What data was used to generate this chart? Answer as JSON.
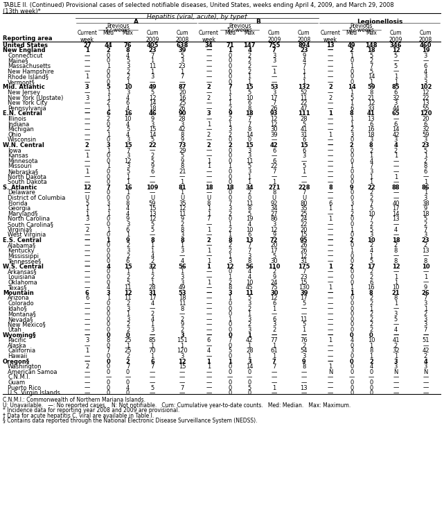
{
  "title": "TABLE II. (Continued) Provisional cases of selected notifiable diseases, United States, weeks ending April 4, 2009, and March 29, 2008",
  "subtitle": "(13th week)*",
  "rows": [
    [
      "United States",
      "27",
      "44",
      "76",
      "405",
      "638",
      "34",
      "71",
      "147",
      "755",
      "894",
      "13",
      "49",
      "148",
      "346",
      "460"
    ],
    [
      "New England",
      "1",
      "2",
      "8",
      "23",
      "39",
      "—",
      "1",
      "4",
      "7",
      "23",
      "—",
      "2",
      "18",
      "12",
      "19"
    ],
    [
      "Connecticut",
      "—",
      "0",
      "4",
      "7",
      "5",
      "—",
      "0",
      "2",
      "3",
      "9",
      "—",
      "1",
      "5",
      "5",
      "3"
    ],
    [
      "Maine§",
      "—",
      "0",
      "5",
      "1",
      "3",
      "—",
      "0",
      "2",
      "3",
      "4",
      "—",
      "0",
      "2",
      "—",
      "—"
    ],
    [
      "Massachusetts",
      "—",
      "1",
      "3",
      "11",
      "23",
      "—",
      "0",
      "2",
      "—",
      "7",
      "—",
      "1",
      "7",
      "5",
      "6"
    ],
    [
      "New Hampshire",
      "—",
      "0",
      "2",
      "1",
      "1",
      "—",
      "0",
      "2",
      "1",
      "1",
      "—",
      "0",
      "5",
      "—",
      "4"
    ],
    [
      "Rhode Island§",
      "1",
      "0",
      "2",
      "3",
      "7",
      "—",
      "0",
      "1",
      "—",
      "1",
      "—",
      "0",
      "14",
      "1",
      "3"
    ],
    [
      "Vermont§",
      "—",
      "0",
      "1",
      "—",
      "—",
      "—",
      "0",
      "1",
      "—",
      "1",
      "—",
      "0",
      "1",
      "1",
      "3"
    ],
    [
      "Mid. Atlantic",
      "3",
      "5",
      "10",
      "49",
      "87",
      "2",
      "7",
      "15",
      "53",
      "132",
      "2",
      "14",
      "59",
      "85",
      "102"
    ],
    [
      "New Jersey",
      "—",
      "1",
      "3",
      "5",
      "20",
      "—",
      "1",
      "5",
      "3",
      "52",
      "—",
      "1",
      "8",
      "6",
      "12"
    ],
    [
      "New York (Upstate)",
      "3",
      "1",
      "4",
      "12",
      "16",
      "2",
      "1",
      "10",
      "17",
      "11",
      "2",
      "5",
      "21",
      "32",
      "22"
    ],
    [
      "New York City",
      "—",
      "2",
      "6",
      "14",
      "25",
      "—",
      "1",
      "6",
      "7",
      "22",
      "—",
      "1",
      "12",
      "3",
      "13"
    ],
    [
      "Pennsylvania",
      "—",
      "1",
      "4",
      "18",
      "26",
      "—",
      "2",
      "8",
      "26",
      "47",
      "—",
      "6",
      "33",
      "44",
      "55"
    ],
    [
      "E.N. Central",
      "—",
      "6",
      "16",
      "46",
      "90",
      "3",
      "9",
      "18",
      "93",
      "111",
      "1",
      "8",
      "41",
      "65",
      "120"
    ],
    [
      "Illinois",
      "—",
      "2",
      "10",
      "9",
      "28",
      "—",
      "2",
      "7",
      "12",
      "28",
      "—",
      "1",
      "13",
      "—",
      "20"
    ],
    [
      "Indiana",
      "—",
      "0",
      "4",
      "3",
      "3",
      "1",
      "1",
      "7",
      "12",
      "5",
      "—",
      "1",
      "6",
      "6",
      "6"
    ],
    [
      "Michigan",
      "—",
      "2",
      "5",
      "15",
      "42",
      "—",
      "3",
      "8",
      "30",
      "41",
      "—",
      "2",
      "16",
      "14",
      "32"
    ],
    [
      "Ohio",
      "—",
      "1",
      "4",
      "14",
      "8",
      "2",
      "2",
      "14",
      "39",
      "31",
      "1",
      "3",
      "18",
      "42",
      "59"
    ],
    [
      "Wisconsin",
      "—",
      "0",
      "3",
      "5",
      "9",
      "—",
      "0",
      "0",
      "—",
      "6",
      "—",
      "0",
      "3",
      "3",
      "3"
    ],
    [
      "W.N. Central",
      "2",
      "3",
      "15",
      "22",
      "73",
      "2",
      "2",
      "15",
      "42",
      "15",
      "—",
      "2",
      "8",
      "4",
      "23"
    ],
    [
      "Iowa",
      "—",
      "1",
      "7",
      "—",
      "29",
      "—",
      "0",
      "3",
      "6",
      "6",
      "—",
      "0",
      "2",
      "2",
      "5"
    ],
    [
      "Kansas",
      "1",
      "0",
      "3",
      "2",
      "5",
      "—",
      "0",
      "3",
      "—",
      "3",
      "—",
      "0",
      "1",
      "1",
      "1"
    ],
    [
      "Minnesota",
      "—",
      "0",
      "12",
      "5",
      "9",
      "1",
      "0",
      "11",
      "6",
      "—",
      "—",
      "0",
      "4",
      "—",
      "2"
    ],
    [
      "Missouri",
      "—",
      "1",
      "3",
      "9",
      "8",
      "1",
      "1",
      "5",
      "22",
      "5",
      "—",
      "1",
      "7",
      "—",
      "8"
    ],
    [
      "Nebraska§",
      "1",
      "0",
      "5",
      "6",
      "21",
      "—",
      "0",
      "3",
      "7",
      "1",
      "—",
      "0",
      "3",
      "—",
      "6"
    ],
    [
      "North Dakota",
      "—",
      "0",
      "1",
      "—",
      "—",
      "—",
      "0",
      "1",
      "—",
      "—",
      "—",
      "0",
      "1",
      "1",
      "—"
    ],
    [
      "South Dakota",
      "—",
      "0",
      "1",
      "—",
      "1",
      "—",
      "0",
      "1",
      "1",
      "—",
      "—",
      "0",
      "1",
      "—",
      "1"
    ],
    [
      "S. Atlantic",
      "12",
      "7",
      "16",
      "109",
      "81",
      "18",
      "18",
      "34",
      "271",
      "228",
      "8",
      "9",
      "22",
      "88",
      "86"
    ],
    [
      "Delaware",
      "—",
      "0",
      "1",
      "—",
      "1",
      "—",
      "0",
      "2",
      "8",
      "7",
      "—",
      "0",
      "2",
      "—",
      "1"
    ],
    [
      "District of Columbia",
      "U",
      "0",
      "0",
      "U",
      "U",
      "U",
      "0",
      "0",
      "U",
      "U",
      "—",
      "0",
      "2",
      "—",
      "3"
    ],
    [
      "Florida",
      "5",
      "3",
      "8",
      "59",
      "35",
      "8",
      "7",
      "11",
      "92",
      "80",
      "6",
      "3",
      "7",
      "40",
      "38"
    ],
    [
      "Georgia",
      "1",
      "1",
      "4",
      "15",
      "12",
      "1",
      "3",
      "8",
      "34",
      "35",
      "1",
      "1",
      "5",
      "17",
      "9"
    ],
    [
      "Maryland§",
      "1",
      "1",
      "4",
      "13",
      "11",
      "1",
      "2",
      "5",
      "27",
      "25",
      "—",
      "2",
      "10",
      "14",
      "18"
    ],
    [
      "North Carolina",
      "3",
      "0",
      "9",
      "12",
      "9",
      "7",
      "0",
      "19",
      "86",
      "24",
      "1",
      "0",
      "7",
      "13",
      "5"
    ],
    [
      "South Carolina§",
      "—",
      "0",
      "3",
      "5",
      "2",
      "—",
      "1",
      "4",
      "3",
      "22",
      "—",
      "0",
      "2",
      "—",
      "2"
    ],
    [
      "Virginia§",
      "2",
      "1",
      "6",
      "5",
      "8",
      "1",
      "2",
      "10",
      "12",
      "20",
      "—",
      "1",
      "5",
      "4",
      "7"
    ],
    [
      "West Virginia",
      "—",
      "0",
      "1",
      "—",
      "3",
      "—",
      "1",
      "6",
      "9",
      "15",
      "—",
      "0",
      "3",
      "—",
      "3"
    ],
    [
      "E.S. Central",
      "—",
      "1",
      "9",
      "8",
      "8",
      "2",
      "8",
      "13",
      "72",
      "95",
      "—",
      "2",
      "10",
      "18",
      "23"
    ],
    [
      "Alabama§",
      "—",
      "0",
      "2",
      "1",
      "1",
      "—",
      "2",
      "7",
      "20",
      "26",
      "—",
      "0",
      "2",
      "2",
      "2"
    ],
    [
      "Kentucky",
      "—",
      "0",
      "3",
      "1",
      "3",
      "1",
      "2",
      "7",
      "17",
      "26",
      "—",
      "1",
      "4",
      "8",
      "13"
    ],
    [
      "Mississippi",
      "—",
      "0",
      "2",
      "4",
      "—",
      "—",
      "1",
      "3",
      "5",
      "12",
      "—",
      "0",
      "1",
      "—",
      "—"
    ],
    [
      "Tennessee§",
      "—",
      "0",
      "6",
      "2",
      "4",
      "1",
      "3",
      "8",
      "30",
      "31",
      "—",
      "0",
      "5",
      "8",
      "8"
    ],
    [
      "W.S. Central",
      "—",
      "4",
      "15",
      "32",
      "56",
      "1",
      "12",
      "56",
      "110",
      "175",
      "1",
      "2",
      "17",
      "12",
      "10"
    ],
    [
      "Arkansas§",
      "—",
      "0",
      "1",
      "1",
      "1",
      "—",
      "0",
      "4",
      "2",
      "7",
      "—",
      "0",
      "2",
      "—",
      "—"
    ],
    [
      "Louisiana",
      "—",
      "0",
      "2",
      "2",
      "3",
      "—",
      "1",
      "4",
      "9",
      "23",
      "—",
      "0",
      "2",
      "1",
      "1"
    ],
    [
      "Oklahoma",
      "—",
      "0",
      "5",
      "1",
      "3",
      "1",
      "2",
      "10",
      "24",
      "15",
      "—",
      "0",
      "6",
      "1",
      "—"
    ],
    [
      "Texas§",
      "—",
      "4",
      "11",
      "28",
      "49",
      "—",
      "8",
      "45",
      "75",
      "130",
      "1",
      "1",
      "16",
      "10",
      "9"
    ],
    [
      "Mountain",
      "6",
      "3",
      "12",
      "31",
      "53",
      "—",
      "3",
      "11",
      "30",
      "39",
      "—",
      "1",
      "8",
      "21",
      "26"
    ],
    [
      "Arizona",
      "6",
      "1",
      "11",
      "17",
      "18",
      "—",
      "1",
      "5",
      "12",
      "17",
      "—",
      "0",
      "2",
      "8",
      "7"
    ],
    [
      "Colorado",
      "—",
      "0",
      "2",
      "4",
      "11",
      "—",
      "0",
      "3",
      "6",
      "5",
      "—",
      "0",
      "2",
      "1",
      "3"
    ],
    [
      "Idaho§",
      "—",
      "0",
      "3",
      "—",
      "8",
      "—",
      "0",
      "2",
      "1",
      "—",
      "—",
      "0",
      "1",
      "—",
      "1"
    ],
    [
      "Montana§",
      "—",
      "0",
      "1",
      "2",
      "—",
      "—",
      "0",
      "1",
      "—",
      "—",
      "—",
      "0",
      "2",
      "3",
      "2"
    ],
    [
      "Nevada§",
      "—",
      "0",
      "3",
      "4",
      "2",
      "—",
      "1",
      "3",
      "6",
      "11",
      "—",
      "0",
      "2",
      "5",
      "3"
    ],
    [
      "New Mexico§",
      "—",
      "0",
      "2",
      "1",
      "9",
      "—",
      "0",
      "2",
      "3",
      "5",
      "—",
      "0",
      "2",
      "—",
      "3"
    ],
    [
      "Utah",
      "—",
      "0",
      "2",
      "3",
      "2",
      "—",
      "0",
      "3",
      "2",
      "1",
      "—",
      "0",
      "2",
      "4",
      "7"
    ],
    [
      "Wyoming§",
      "—",
      "0",
      "0",
      "—",
      "3",
      "—",
      "0",
      "1",
      "—",
      "—",
      "—",
      "0",
      "0",
      "—",
      "—"
    ],
    [
      "Pacific",
      "3",
      "8",
      "25",
      "85",
      "151",
      "6",
      "7",
      "42",
      "77",
      "76",
      "1",
      "4",
      "10",
      "41",
      "51"
    ],
    [
      "Alaska",
      "—",
      "0",
      "1",
      "1",
      "1",
      "—",
      "0",
      "1",
      "1",
      "2",
      "—",
      "0",
      "1",
      "2",
      "—"
    ],
    [
      "California",
      "1",
      "7",
      "25",
      "70",
      "120",
      "4",
      "5",
      "28",
      "61",
      "54",
      "—",
      "3",
      "8",
      "32",
      "42"
    ],
    [
      "Hawaii",
      "—",
      "0",
      "2",
      "1",
      "3",
      "—",
      "0",
      "1",
      "1",
      "3",
      "—",
      "0",
      "1",
      "1",
      "2"
    ],
    [
      "Oregon§",
      "—",
      "0",
      "2",
      "6",
      "12",
      "1",
      "1",
      "3",
      "7",
      "9",
      "—",
      "0",
      "2",
      "3",
      "4"
    ],
    [
      "Washington",
      "2",
      "0",
      "7",
      "7",
      "15",
      "1",
      "0",
      "14",
      "7",
      "8",
      "1",
      "0",
      "4",
      "3",
      "3"
    ],
    [
      "American Samoa",
      "—",
      "0",
      "0",
      "—",
      "—",
      "—",
      "0",
      "0",
      "—",
      "—",
      "N",
      "0",
      "0",
      "N",
      "N"
    ],
    [
      "C.N.M.I.",
      "—",
      "—",
      "—",
      "—",
      "—",
      "—",
      "—",
      "—",
      "—",
      "—",
      "—",
      "—",
      "—",
      "—",
      "—"
    ],
    [
      "Guam",
      "—",
      "0",
      "0",
      "—",
      "—",
      "—",
      "0",
      "0",
      "—",
      "—",
      "—",
      "0",
      "0",
      "—",
      "—"
    ],
    [
      "Puerto Rico",
      "—",
      "0",
      "4",
      "5",
      "7",
      "—",
      "0",
      "5",
      "1",
      "13",
      "—",
      "0",
      "0",
      "—",
      "—"
    ],
    [
      "U.S. Virgin Islands",
      "—",
      "0",
      "0",
      "—",
      "—",
      "—",
      "0",
      "0",
      "—",
      "—",
      "—",
      "0",
      "0",
      "—",
      "—"
    ]
  ],
  "bold_rows": [
    0,
    1,
    8,
    13,
    19,
    27,
    37,
    42,
    47,
    55,
    60
  ],
  "footnotes": [
    "C.N.M.I.: Commonwealth of Northern Mariana Islands.",
    "U: Unavailable.   —: No reported cases.   N: Not notifiable.   Cum: Cumulative year-to-date counts.   Med: Median.   Max: Maximum.",
    "* Incidence data for reporting year 2008 and 2009 are provisional.",
    "† Data for acute hepatitis C, viral are available in Table I.",
    "§ Contains data reported through the National Electronic Disease Surveillance System (NEDSS)."
  ]
}
